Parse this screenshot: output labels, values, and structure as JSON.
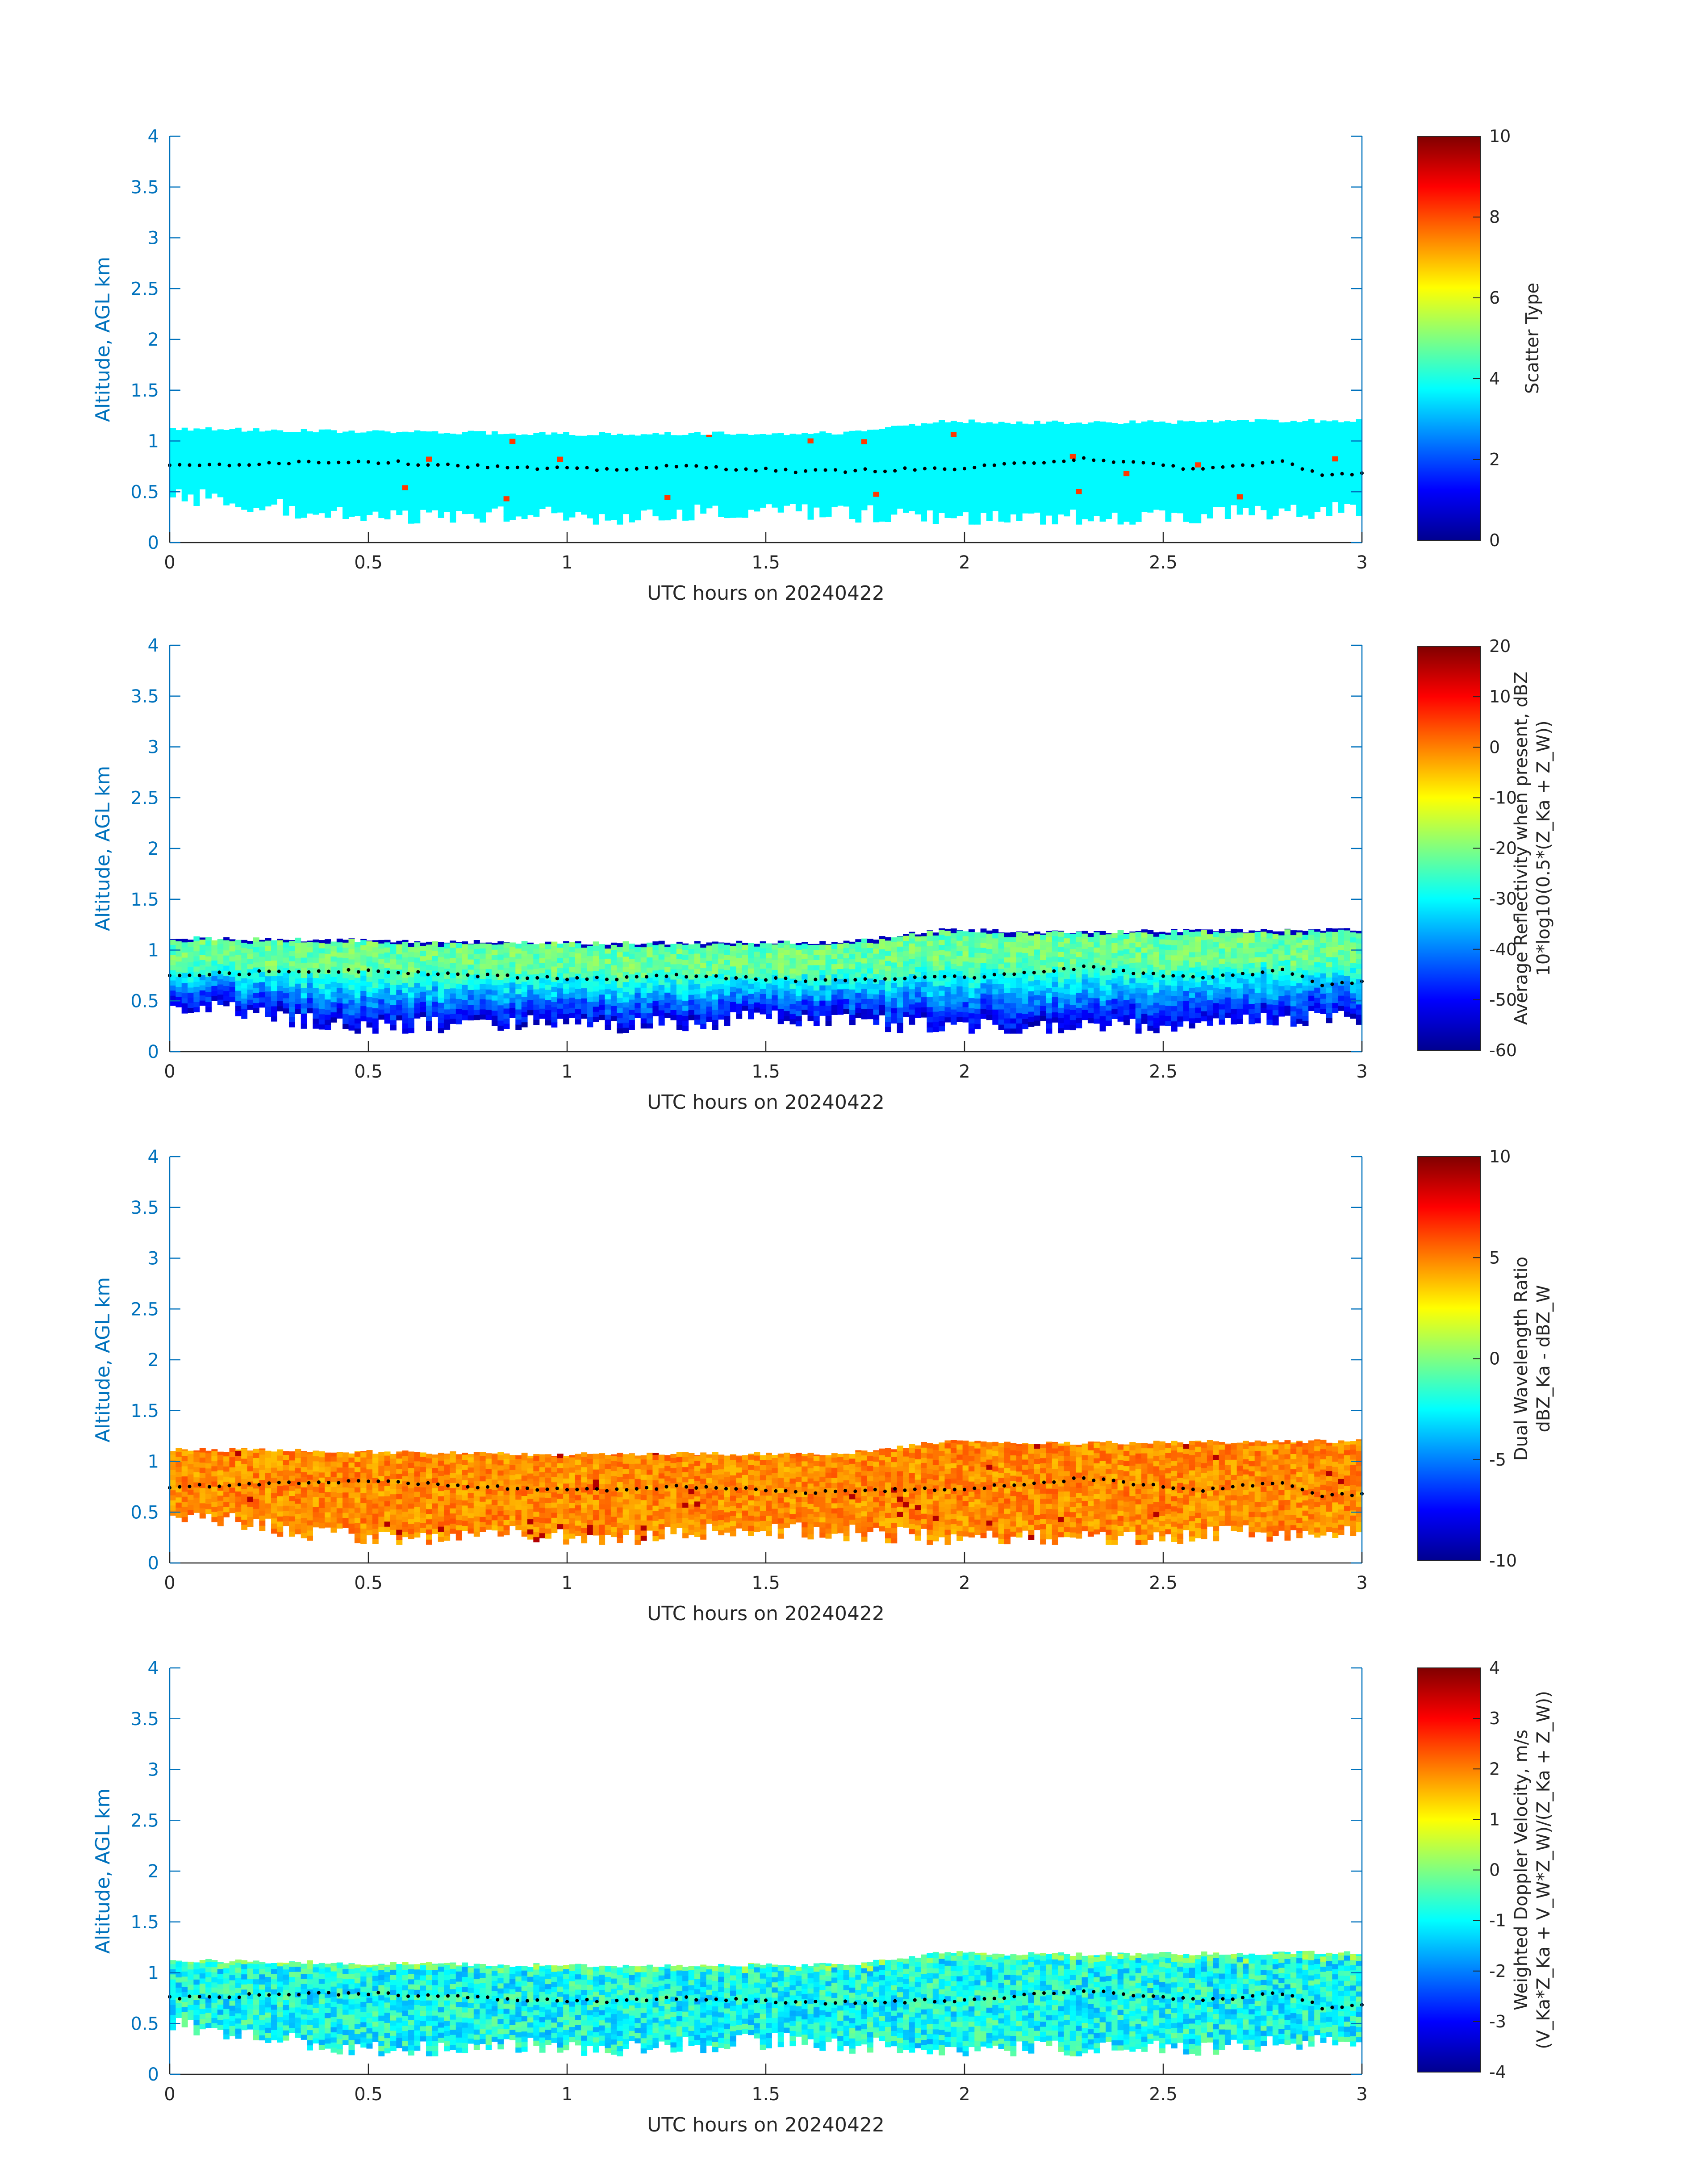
{
  "chart_data": [
    {
      "type": "heatmap",
      "field": "scatter_type",
      "xlabel": "UTC hours on 20240422",
      "ylabel": "Altitude, AGL km",
      "xlim": [
        0,
        3
      ],
      "ylim": [
        0,
        4
      ],
      "xticks": [
        "0",
        "0.5",
        "1",
        "1.5",
        "2",
        "2.5",
        "3"
      ],
      "yticks": [
        "0",
        "0.5",
        "1",
        "1.5",
        "2",
        "2.5",
        "3",
        "3.5",
        "4"
      ],
      "colorbar": {
        "label": [
          "Scatter Type"
        ],
        "range": [
          0,
          10
        ],
        "ticks": [
          "0",
          "2",
          "4",
          "6",
          "8",
          "10"
        ],
        "colormap": "jet"
      },
      "typical_value": 3.7
    },
    {
      "type": "heatmap",
      "field": "reflectivity",
      "xlabel": "UTC hours on 20240422",
      "ylabel": "Altitude, AGL km",
      "xlim": [
        0,
        3
      ],
      "ylim": [
        0,
        4
      ],
      "xticks": [
        "0",
        "0.5",
        "1",
        "1.5",
        "2",
        "2.5",
        "3"
      ],
      "yticks": [
        "0",
        "0.5",
        "1",
        "1.5",
        "2",
        "2.5",
        "3",
        "3.5",
        "4"
      ],
      "colorbar": {
        "label": [
          "Average Reflectivity when present, dBZ",
          "10*log10(0.5*(Z_Ka + Z_W))"
        ],
        "range": [
          -60,
          20
        ],
        "ticks": [
          "-60",
          "-50",
          "-40",
          "-30",
          "-20",
          "-10",
          "0",
          "10",
          "20"
        ],
        "colormap": "jet"
      },
      "typical_value": -30
    },
    {
      "type": "heatmap",
      "field": "dual_wavelength_ratio",
      "xlabel": "UTC hours on 20240422",
      "ylabel": "Altitude, AGL km",
      "xlim": [
        0,
        3
      ],
      "ylim": [
        0,
        4
      ],
      "xticks": [
        "0",
        "0.5",
        "1",
        "1.5",
        "2",
        "2.5",
        "3"
      ],
      "yticks": [
        "0",
        "0.5",
        "1",
        "1.5",
        "2",
        "2.5",
        "3",
        "3.5",
        "4"
      ],
      "colorbar": {
        "label": [
          "Dual Wavelength Ratio",
          "dBZ_Ka - dBZ_W"
        ],
        "range": [
          -10,
          10
        ],
        "ticks": [
          "-10",
          "-5",
          "0",
          "5",
          "10"
        ],
        "colormap": "jet"
      },
      "typical_value": 5
    },
    {
      "type": "heatmap",
      "field": "doppler_velocity",
      "xlabel": "UTC hours on 20240422",
      "ylabel": "Altitude, AGL km",
      "xlim": [
        0,
        3
      ],
      "ylim": [
        0,
        4
      ],
      "xticks": [
        "0",
        "0.5",
        "1",
        "1.5",
        "2",
        "2.5",
        "3"
      ],
      "yticks": [
        "0",
        "0.5",
        "1",
        "1.5",
        "2",
        "2.5",
        "3",
        "3.5",
        "4"
      ],
      "colorbar": {
        "label": [
          "Weighted Doppler Velocity, m/s",
          "(V_Ka*Z_Ka + V_W*Z_W)/(Z_Ka + Z_W))"
        ],
        "range": [
          -4,
          4
        ],
        "ticks": [
          "-4",
          "-3",
          "-2",
          "-1",
          "0",
          "1",
          "2",
          "3",
          "4"
        ],
        "colormap": "jet"
      },
      "typical_value": -0.8
    }
  ],
  "cloud_layer": {
    "description": "cloud echo between roughly 0.2 and 1.2 km AGL over 0-3 UTC hours",
    "top_km": [
      [
        0,
        1.12
      ],
      [
        1.0,
        1.07
      ],
      [
        1.7,
        1.08
      ],
      [
        1.95,
        1.2
      ],
      [
        2.2,
        1.18
      ],
      [
        3.0,
        1.2
      ]
    ],
    "bottom_km": [
      [
        0,
        0.45
      ],
      [
        0.2,
        0.35
      ],
      [
        0.5,
        0.2
      ],
      [
        0.9,
        0.25
      ],
      [
        1.1,
        0.2
      ],
      [
        1.5,
        0.3
      ],
      [
        2.0,
        0.2
      ],
      [
        2.5,
        0.22
      ],
      [
        3.0,
        0.3
      ]
    ]
  },
  "dotted_line": {
    "label": "cloud midline marker",
    "points_km": [
      [
        0,
        0.75
      ],
      [
        0.3,
        0.79
      ],
      [
        0.5,
        0.8
      ],
      [
        0.9,
        0.73
      ],
      [
        1.1,
        0.72
      ],
      [
        1.3,
        0.75
      ],
      [
        1.6,
        0.7
      ],
      [
        2.0,
        0.73
      ],
      [
        2.3,
        0.83
      ],
      [
        2.6,
        0.72
      ],
      [
        2.8,
        0.8
      ],
      [
        2.9,
        0.66
      ],
      [
        3.0,
        0.68
      ]
    ]
  }
}
